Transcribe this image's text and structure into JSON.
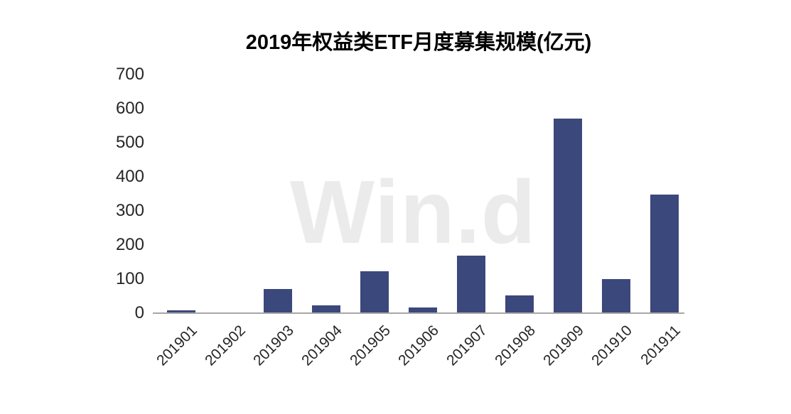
{
  "watermark": {
    "text": "Win.d",
    "color": "#ebebeb"
  },
  "chart_data": {
    "type": "bar",
    "title": "2019年权益类ETF月度募集规模(亿元)",
    "categories": [
      "201901",
      "201902",
      "201903",
      "201904",
      "201905",
      "201906",
      "201907",
      "201908",
      "201909",
      "201910",
      "201911"
    ],
    "values": [
      8,
      1,
      71,
      23,
      122,
      17,
      169,
      52,
      570,
      101,
      347
    ],
    "xlabel": "",
    "ylabel": "",
    "ylim": [
      0,
      700
    ],
    "yticks": [
      0,
      100,
      200,
      300,
      400,
      500,
      600,
      700
    ],
    "grid": false,
    "legend": "none",
    "x_tick_rotation_deg": 45,
    "colors": {
      "bar": "#3B487B",
      "axis_line": "#A6A6A6",
      "title_text": "#000000",
      "tick_text": "#262626",
      "background": "#FFFFFF"
    }
  }
}
